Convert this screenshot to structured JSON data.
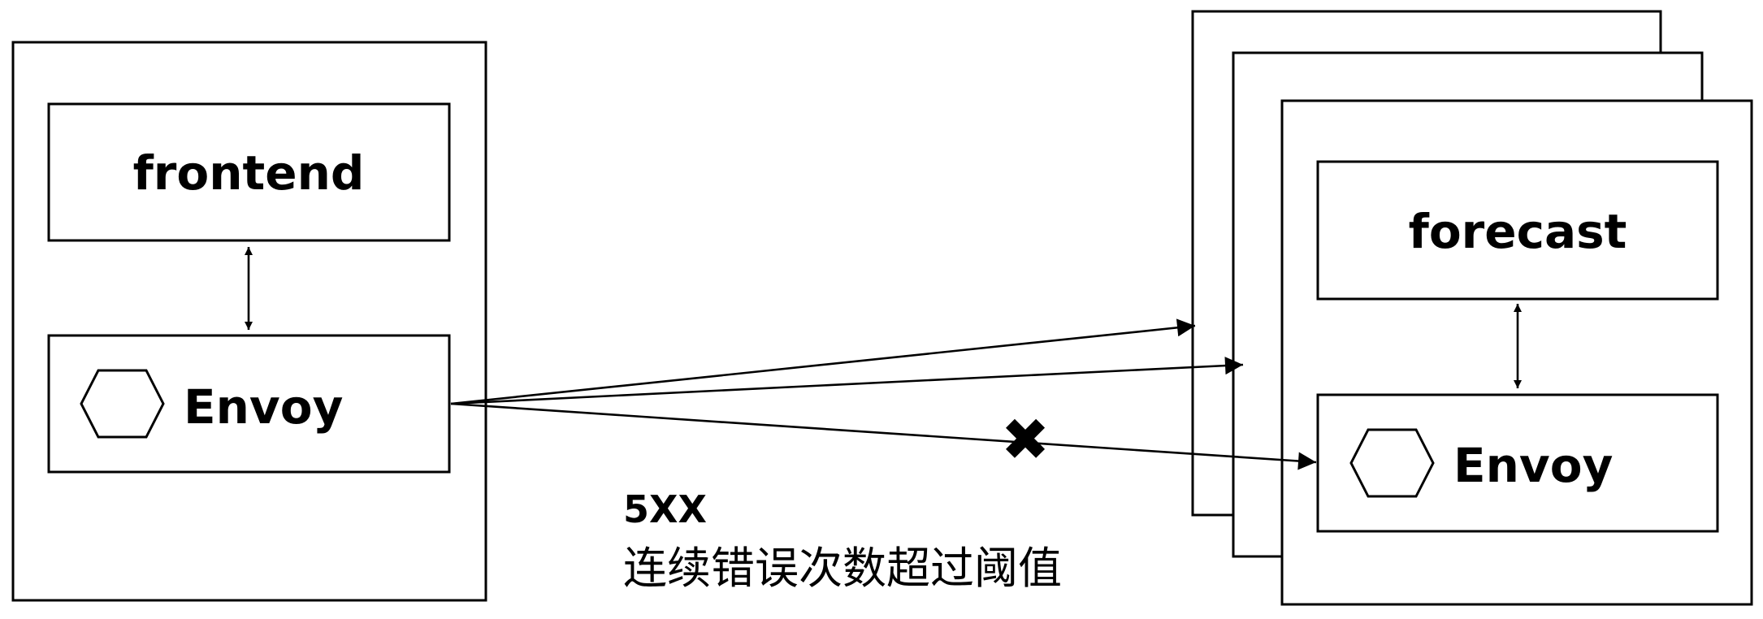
{
  "client_pod": {
    "app_label": "frontend",
    "proxy_label": "Envoy",
    "proxy_icon": "hexagon-icon"
  },
  "upstream_pods": {
    "replica_count": 3,
    "app_label": "forecast",
    "proxy_label": "Envoy",
    "proxy_icon": "hexagon-icon"
  },
  "ejection_note": {
    "error_code": "5XX",
    "description": "连续错误次数超过阈值",
    "failed_marker": "✖"
  }
}
